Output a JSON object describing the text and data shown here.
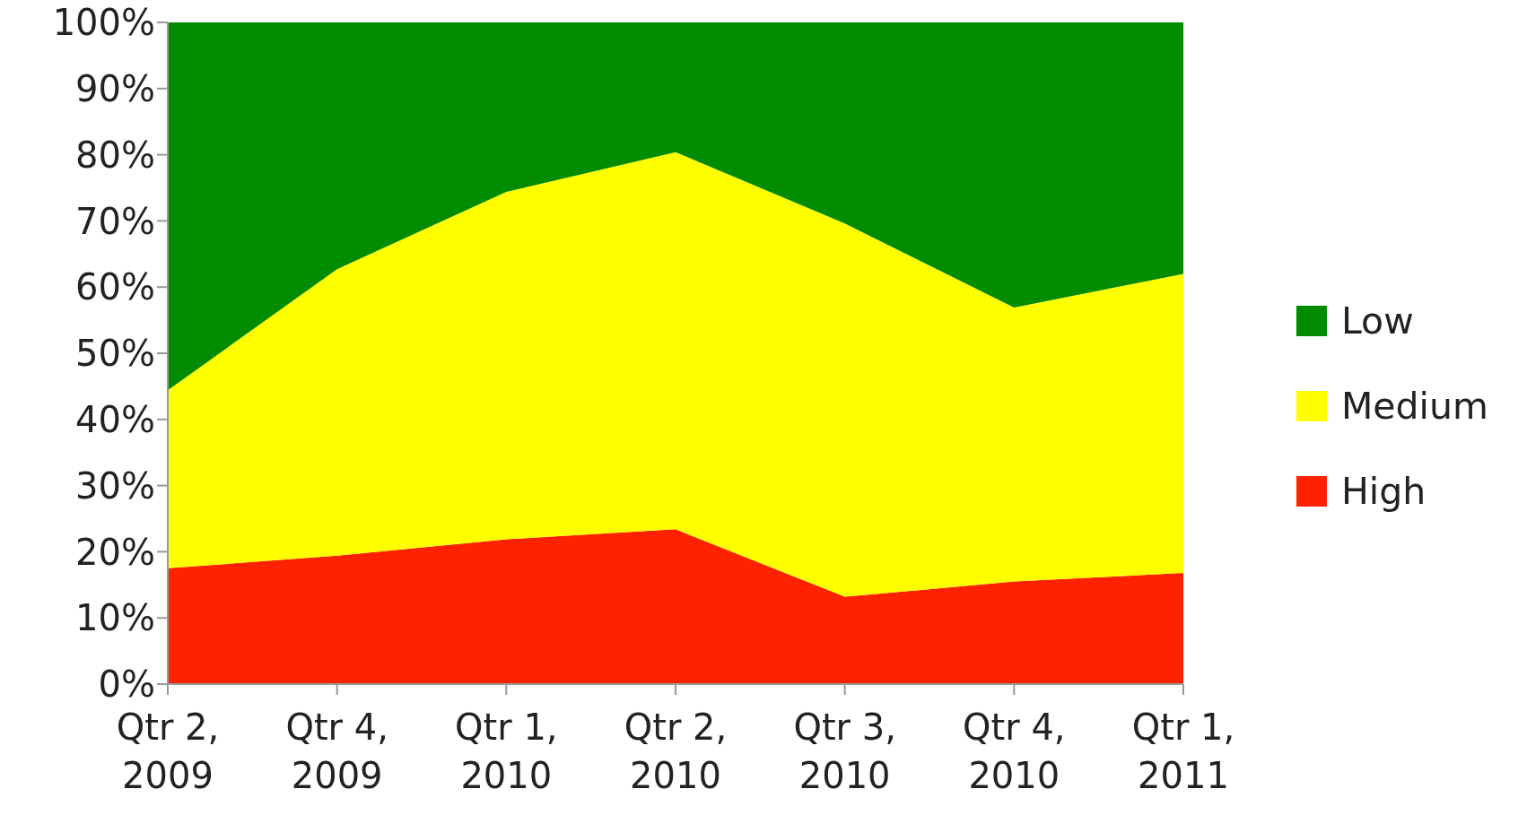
{
  "chart_data": {
    "type": "area",
    "stacked": true,
    "categories": [
      "Qtr 2, 2009",
      "Qtr 4, 2009",
      "Qtr 1, 2010",
      "Qtr 2, 2010",
      "Qtr 3, 2010",
      "Qtr 4, 2010",
      "Qtr 1, 2011"
    ],
    "series": [
      {
        "name": "High",
        "color": "#ff2200",
        "values": [
          17.5,
          19.4,
          21.9,
          23.4,
          13.2,
          15.5,
          16.8
        ]
      },
      {
        "name": "Medium",
        "color": "#ffff00",
        "values": [
          26.9,
          43.3,
          52.5,
          57.0,
          56.4,
          41.4,
          45.2
        ]
      },
      {
        "name": "Low",
        "color": "#008c00",
        "values": [
          55.6,
          37.3,
          25.6,
          19.6,
          30.4,
          43.1,
          38.0
        ]
      }
    ],
    "ylim": [
      0,
      100
    ],
    "yticks": [
      {
        "value": 0,
        "label": "0%"
      },
      {
        "value": 10,
        "label": "10%"
      },
      {
        "value": 20,
        "label": "20%"
      },
      {
        "value": 30,
        "label": "30%"
      },
      {
        "value": 40,
        "label": "40%"
      },
      {
        "value": 50,
        "label": "50%"
      },
      {
        "value": 60,
        "label": "60%"
      },
      {
        "value": 70,
        "label": "70%"
      },
      {
        "value": 80,
        "label": "80%"
      },
      {
        "value": 90,
        "label": "90%"
      },
      {
        "value": 100,
        "label": "100%"
      }
    ],
    "grid": false,
    "legend": "right"
  }
}
